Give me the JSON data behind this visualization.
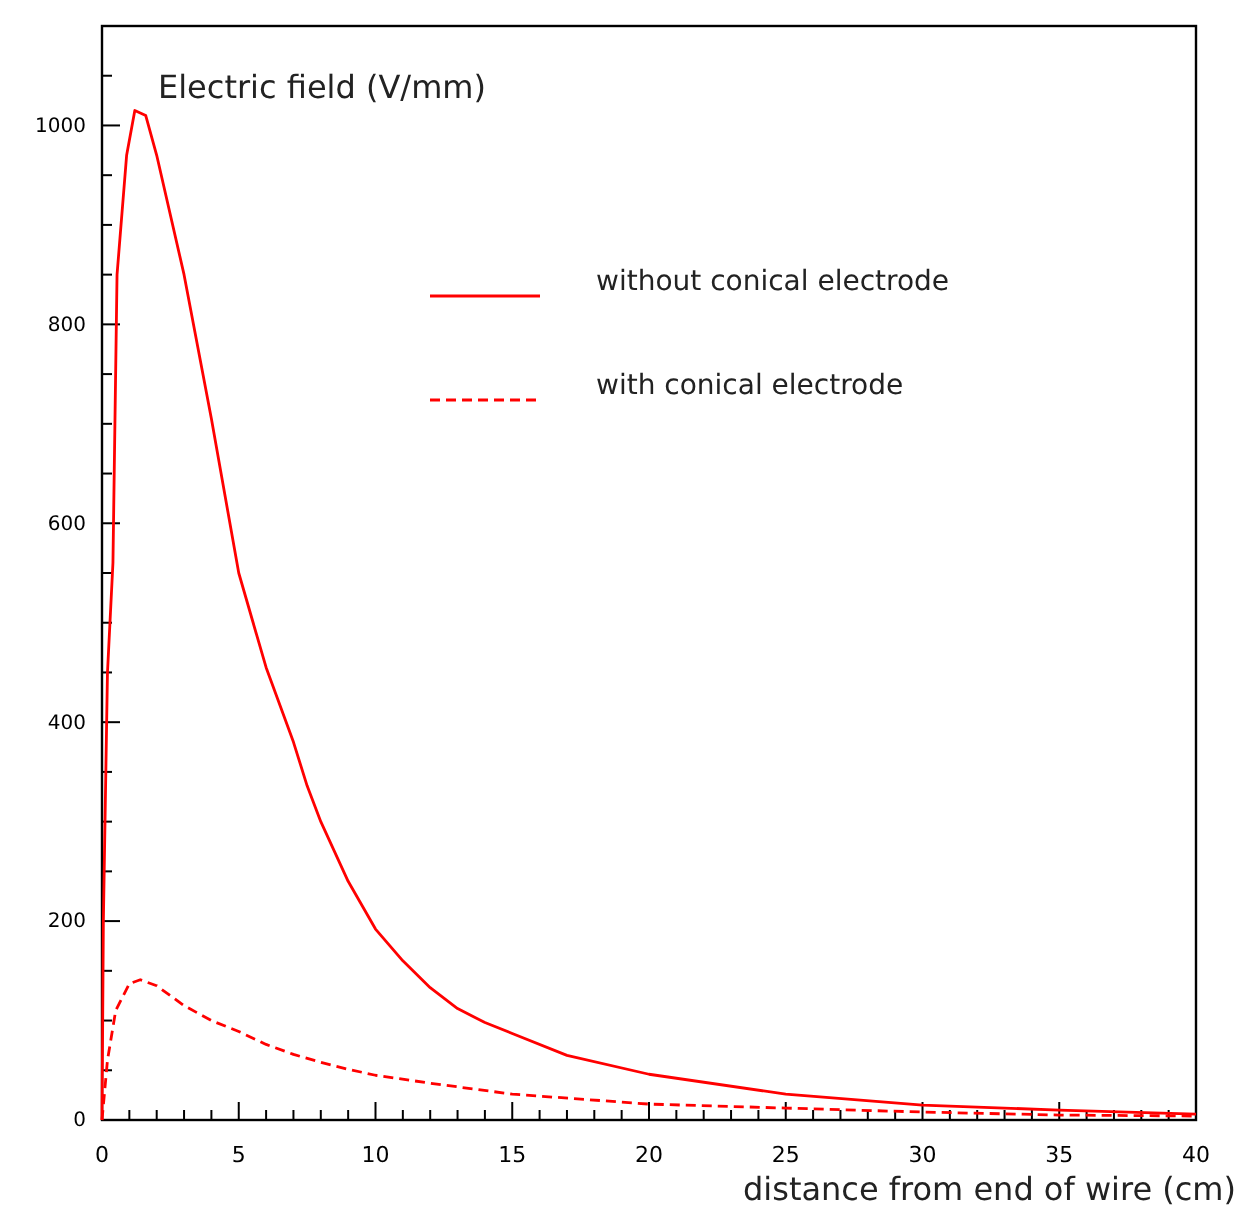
{
  "chart_data": {
    "type": "line",
    "ylabel": "Electric field (V/mm)",
    "xlabel": "distance from end of wire (cm)",
    "xlim": [
      0,
      40
    ],
    "ylim": [
      0,
      1100
    ],
    "xticks": [
      0,
      {
        "value": 1,
        "label": null
      },
      {
        "value": 2,
        "label": null
      },
      {
        "value": 3,
        "label": null
      },
      {
        "value": 4,
        "label": null
      },
      5,
      {
        "value": 6,
        "label": null
      },
      {
        "value": 7,
        "label": null
      },
      {
        "value": 8,
        "label": null
      },
      {
        "value": 9,
        "label": null
      },
      10,
      {
        "value": 11,
        "label": null
      },
      {
        "value": 12,
        "label": null
      },
      {
        "value": 13,
        "label": null
      },
      {
        "value": 14,
        "label": null
      },
      15,
      {
        "value": 16,
        "label": null
      },
      {
        "value": 17,
        "label": null
      },
      {
        "value": 18,
        "label": null
      },
      {
        "value": 19,
        "label": null
      },
      20,
      {
        "value": 21,
        "label": null
      },
      {
        "value": 22,
        "label": null
      },
      {
        "value": 23,
        "label": null
      },
      {
        "value": 24,
        "label": null
      },
      25,
      {
        "value": 26,
        "label": null
      },
      {
        "value": 27,
        "label": null
      },
      {
        "value": 28,
        "label": null
      },
      {
        "value": 29,
        "label": null
      },
      30,
      {
        "value": 31,
        "label": null
      },
      {
        "value": 32,
        "label": null
      },
      {
        "value": 33,
        "label": null
      },
      {
        "value": 34,
        "label": null
      },
      35,
      {
        "value": 36,
        "label": null
      },
      {
        "value": 37,
        "label": null
      },
      {
        "value": 38,
        "label": null
      },
      {
        "value": 39,
        "label": null
      },
      40
    ],
    "yticks": [
      0,
      {
        "value": 50,
        "label": null
      },
      {
        "value": 100,
        "label": null
      },
      {
        "value": 150,
        "label": null
      },
      200,
      {
        "value": 250,
        "label": null
      },
      {
        "value": 300,
        "label": null
      },
      {
        "value": 350,
        "label": null
      },
      400,
      {
        "value": 450,
        "label": null
      },
      {
        "value": 500,
        "label": null
      },
      {
        "value": 550,
        "label": null
      },
      600,
      {
        "value": 650,
        "label": null
      },
      {
        "value": 700,
        "label": null
      },
      {
        "value": 750,
        "label": null
      },
      800,
      {
        "value": 850,
        "label": null
      },
      {
        "value": 900,
        "label": null
      },
      {
        "value": 950,
        "label": null
      },
      1000,
      {
        "value": 1050,
        "label": null
      }
    ],
    "grid": false,
    "legend": "top right",
    "series": [
      {
        "name": "without conical electrode",
        "color": "#ff0000",
        "line_style": "solid",
        "x": [
          0,
          0.05,
          0.2,
          0.4,
          0.55,
          0.9,
          1.2,
          1.6,
          2,
          3,
          4,
          5,
          6,
          7,
          7.5,
          8,
          9,
          10,
          11,
          12,
          13,
          14,
          15,
          17,
          20,
          25,
          30,
          35,
          40
        ],
        "values": [
          0,
          200,
          450,
          560,
          850,
          970,
          1015,
          1010,
          970,
          850,
          705,
          550,
          455,
          380,
          336,
          300,
          240,
          192,
          160,
          133,
          112,
          98,
          87,
          65,
          46,
          26,
          15,
          10,
          6
        ]
      },
      {
        "name": "with conical electrode",
        "color": "#ff0000",
        "line_style": "dashed",
        "x": [
          0,
          0.2,
          0.5,
          1,
          1.4,
          2,
          3,
          4,
          5,
          6,
          7,
          8,
          9,
          10,
          12,
          15,
          20,
          25,
          30,
          35,
          40
        ],
        "values": [
          0,
          60,
          110,
          137,
          141,
          135,
          115,
          100,
          89,
          76,
          66,
          58,
          51,
          45,
          37,
          26,
          16,
          12,
          8,
          5,
          4
        ]
      }
    ]
  }
}
